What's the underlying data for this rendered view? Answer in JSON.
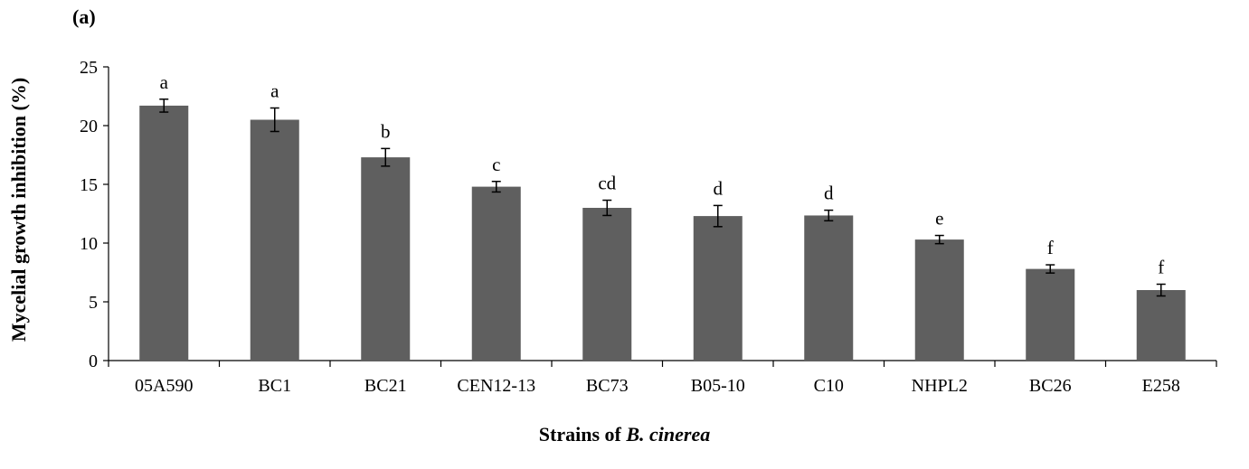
{
  "panel_label": "(a)",
  "chart_data": {
    "type": "bar",
    "categories": [
      "05A590",
      "BC1",
      "BC21",
      "CEN12-13",
      "BC73",
      "B05-10",
      "C10",
      "NHPL2",
      "BC26",
      "E258"
    ],
    "values": [
      21.7,
      20.5,
      17.3,
      14.8,
      13.0,
      12.3,
      12.35,
      10.3,
      7.8,
      6.0
    ],
    "errors": [
      0.55,
      1.0,
      0.75,
      0.45,
      0.65,
      0.9,
      0.45,
      0.35,
      0.35,
      0.5
    ],
    "significance_letters": [
      "a",
      "a",
      "b",
      "c",
      "cd",
      "d",
      "d",
      "e",
      "f",
      "f"
    ],
    "xlabel_prefix": "Strains of ",
    "xlabel_italic": "B. cinerea",
    "ylabel": "Mycelial growth inhibition (%)",
    "ylim": [
      0,
      25
    ],
    "yticks": [
      "0",
      "5",
      "10",
      "15",
      "20",
      "25"
    ],
    "grid": false,
    "bar_color": "#5f5f5f"
  }
}
